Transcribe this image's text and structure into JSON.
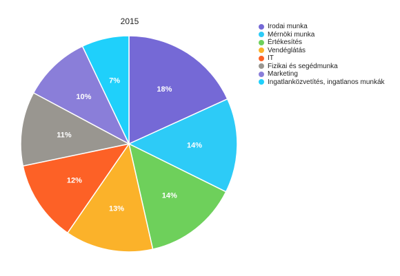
{
  "chart_data": {
    "type": "pie",
    "title": "2015",
    "categories": [
      "Irodai munka",
      "Mérnöki munka",
      "Értékesítés",
      "Vendéglátás",
      "IT",
      "Fizikai és segédmunka",
      "Marketing",
      "Ingatlanközvetítés, ingatlanos munkák"
    ],
    "values": [
      18,
      14,
      14,
      13,
      12,
      11,
      10,
      7
    ],
    "value_labels": [
      "18%",
      "14%",
      "14%",
      "13%",
      "12%",
      "11%",
      "10%",
      "7%"
    ],
    "colors": [
      "#7569d6",
      "#2dcbf7",
      "#6ed05b",
      "#fbb22a",
      "#fd6126",
      "#999690",
      "#8a7ed9",
      "#1fd0fb"
    ],
    "legend_position": "right",
    "start_angle": "12 o'clock",
    "direction": "clockwise"
  }
}
